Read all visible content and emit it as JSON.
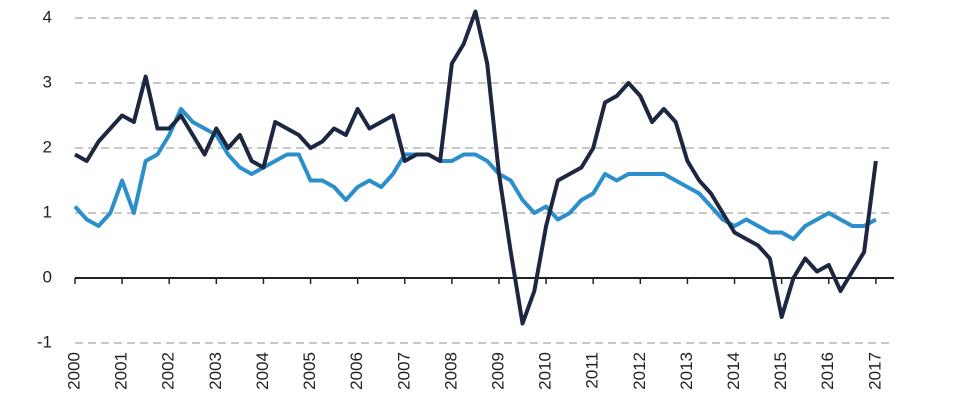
{
  "chart_data": {
    "type": "line",
    "x": [
      2000,
      2000.25,
      2000.5,
      2000.75,
      2001,
      2001.25,
      2001.5,
      2001.75,
      2002,
      2002.25,
      2002.5,
      2002.75,
      2003,
      2003.25,
      2003.5,
      2003.75,
      2004,
      2004.25,
      2004.5,
      2004.75,
      2005,
      2005.25,
      2005.5,
      2005.75,
      2006,
      2006.25,
      2006.5,
      2006.75,
      2007,
      2007.25,
      2007.5,
      2007.75,
      2008,
      2008.25,
      2008.5,
      2008.75,
      2009,
      2009.25,
      2009.5,
      2009.75,
      2010,
      2010.25,
      2010.5,
      2010.75,
      2011,
      2011.25,
      2011.5,
      2011.75,
      2012,
      2012.25,
      2012.5,
      2012.75,
      2013,
      2013.25,
      2013.5,
      2013.75,
      2014,
      2014.25,
      2014.5,
      2014.75,
      2015,
      2015.25,
      2015.5,
      2015.75,
      2016,
      2016.25,
      2016.5,
      2016.75,
      2017
    ],
    "series": [
      {
        "color": "#1e2742",
        "values": [
          1.9,
          1.8,
          2.1,
          2.3,
          2.5,
          2.4,
          3.1,
          2.3,
          2.3,
          2.5,
          2.2,
          1.9,
          2.3,
          2.0,
          2.2,
          1.8,
          1.7,
          2.4,
          2.3,
          2.2,
          2.0,
          2.1,
          2.3,
          2.2,
          2.6,
          2.3,
          2.4,
          2.5,
          1.8,
          1.9,
          1.9,
          1.8,
          3.3,
          3.6,
          4.1,
          3.3,
          1.6,
          0.4,
          -0.7,
          -0.2,
          0.8,
          1.5,
          1.6,
          1.7,
          2.0,
          2.7,
          2.8,
          3.0,
          2.8,
          2.4,
          2.6,
          2.4,
          1.8,
          1.5,
          1.3,
          1.0,
          0.7,
          0.6,
          0.5,
          0.3,
          -0.6,
          0.0,
          0.3,
          0.1,
          0.2,
          -0.2,
          0.1,
          0.4,
          1.8
        ]
      },
      {
        "color": "#2a8fca",
        "values": [
          1.1,
          0.9,
          0.8,
          1.0,
          1.5,
          1.0,
          1.8,
          1.9,
          2.2,
          2.6,
          2.4,
          2.3,
          2.2,
          1.9,
          1.7,
          1.6,
          1.7,
          1.8,
          1.9,
          1.9,
          1.5,
          1.5,
          1.4,
          1.2,
          1.4,
          1.5,
          1.4,
          1.6,
          1.9,
          1.9,
          1.9,
          1.8,
          1.8,
          1.9,
          1.9,
          1.8,
          1.6,
          1.5,
          1.2,
          1.0,
          1.1,
          0.9,
          1.0,
          1.2,
          1.3,
          1.6,
          1.5,
          1.6,
          1.6,
          1.6,
          1.6,
          1.5,
          1.4,
          1.3,
          1.1,
          0.9,
          0.8,
          0.9,
          0.8,
          0.7,
          0.7,
          0.6,
          0.8,
          0.9,
          1.0,
          0.9,
          0.8,
          0.8,
          0.9
        ]
      }
    ],
    "xlim": [
      2000,
      2017.3
    ],
    "xticks": [
      2000,
      2001,
      2002,
      2003,
      2004,
      2005,
      2006,
      2007,
      2008,
      2009,
      2010,
      2011,
      2012,
      2013,
      2014,
      2015,
      2016,
      2017
    ],
    "ylim": [
      -1,
      4
    ],
    "yticks": [
      -1,
      0,
      1,
      2,
      3,
      4
    ],
    "grid": true
  }
}
